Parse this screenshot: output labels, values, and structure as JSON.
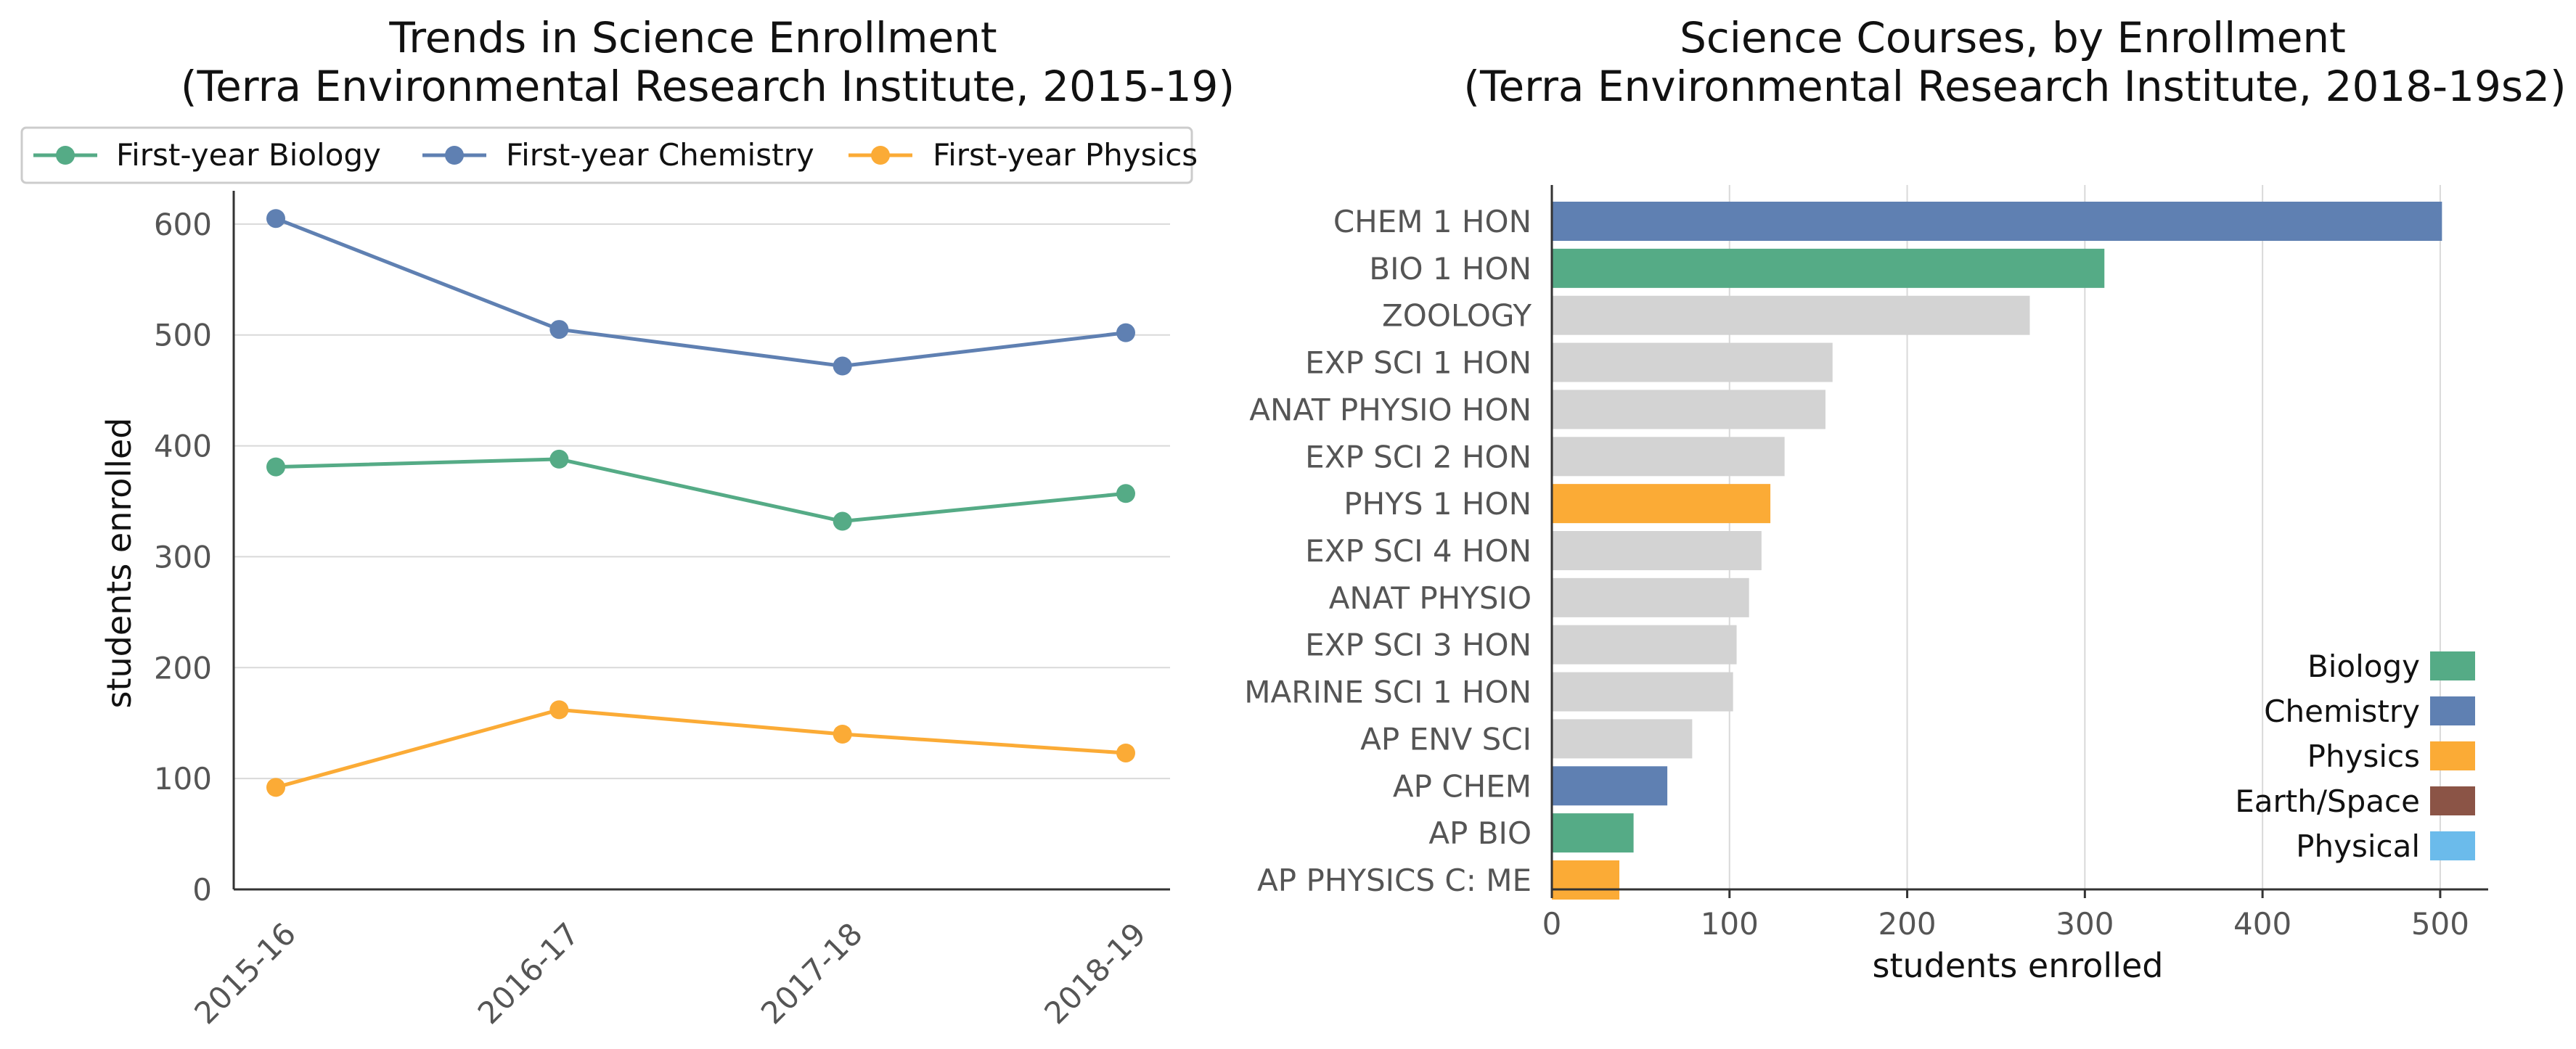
{
  "colors": {
    "biology": "#55ab86",
    "chemistry": "#5f80b2",
    "physics": "#fbab36",
    "earth_space": "#8b5446",
    "physical": "#6bbbeb",
    "other": "#d3d3d3"
  },
  "chart_data": [
    {
      "type": "line",
      "title": [
        "Trends in Science Enrollment",
        "(Terra Environmental Research Institute, 2015-19)"
      ],
      "xlabel": "",
      "ylabel": "students enrolled",
      "categories": [
        "2015-16",
        "2016-17",
        "2017-18",
        "2018-19"
      ],
      "ylim": [
        0,
        630
      ],
      "yticks": [
        0,
        100,
        200,
        300,
        400,
        500,
        600
      ],
      "grid": "horizontal",
      "legend_placement": "top",
      "series": [
        {
          "name": "First-year Biology",
          "color_key": "biology",
          "values": [
            381,
            388,
            332,
            357
          ]
        },
        {
          "name": "First-year Chemistry",
          "color_key": "chemistry",
          "values": [
            605,
            505,
            472,
            502
          ]
        },
        {
          "name": "First-year Physics",
          "color_key": "physics",
          "values": [
            92,
            162,
            140,
            123
          ]
        }
      ]
    },
    {
      "type": "bar",
      "orientation": "horizontal",
      "title": [
        "Science Courses, by Enrollment",
        "(Terra Environmental Research Institute, 2018-19s2)"
      ],
      "xlabel": "students enrolled",
      "ylabel": "",
      "xlim": [
        0,
        527
      ],
      "xticks": [
        0,
        100,
        200,
        300,
        400,
        500
      ],
      "grid": "vertical",
      "legend_placement": "lower-right",
      "bars": [
        {
          "label": "CHEM 1 HON",
          "value": 501,
          "color_key": "chemistry"
        },
        {
          "label": "BIO 1 HON",
          "value": 311,
          "color_key": "biology"
        },
        {
          "label": "ZOOLOGY",
          "value": 269,
          "color_key": "other"
        },
        {
          "label": "EXP SCI 1 HON",
          "value": 158,
          "color_key": "other"
        },
        {
          "label": "ANAT PHYSIO HON",
          "value": 154,
          "color_key": "other"
        },
        {
          "label": "EXP SCI 2 HON",
          "value": 131,
          "color_key": "other"
        },
        {
          "label": "PHYS 1 HON",
          "value": 123,
          "color_key": "physics"
        },
        {
          "label": "EXP SCI 4 HON",
          "value": 118,
          "color_key": "other"
        },
        {
          "label": "ANAT PHYSIO",
          "value": 111,
          "color_key": "other"
        },
        {
          "label": "EXP SCI 3 HON",
          "value": 104,
          "color_key": "other"
        },
        {
          "label": "MARINE SCI 1 HON",
          "value": 102,
          "color_key": "other"
        },
        {
          "label": "AP ENV SCI",
          "value": 79,
          "color_key": "other"
        },
        {
          "label": "AP CHEM",
          "value": 65,
          "color_key": "chemistry"
        },
        {
          "label": "AP BIO",
          "value": 46,
          "color_key": "biology"
        },
        {
          "label": "AP PHYSICS C: ME",
          "value": 38,
          "color_key": "physics"
        }
      ],
      "legend": [
        {
          "name": "Biology",
          "color_key": "biology"
        },
        {
          "name": "Chemistry",
          "color_key": "chemistry"
        },
        {
          "name": "Physics",
          "color_key": "physics"
        },
        {
          "name": "Earth/Space",
          "color_key": "earth_space"
        },
        {
          "name": "Physical",
          "color_key": "physical"
        }
      ]
    }
  ]
}
